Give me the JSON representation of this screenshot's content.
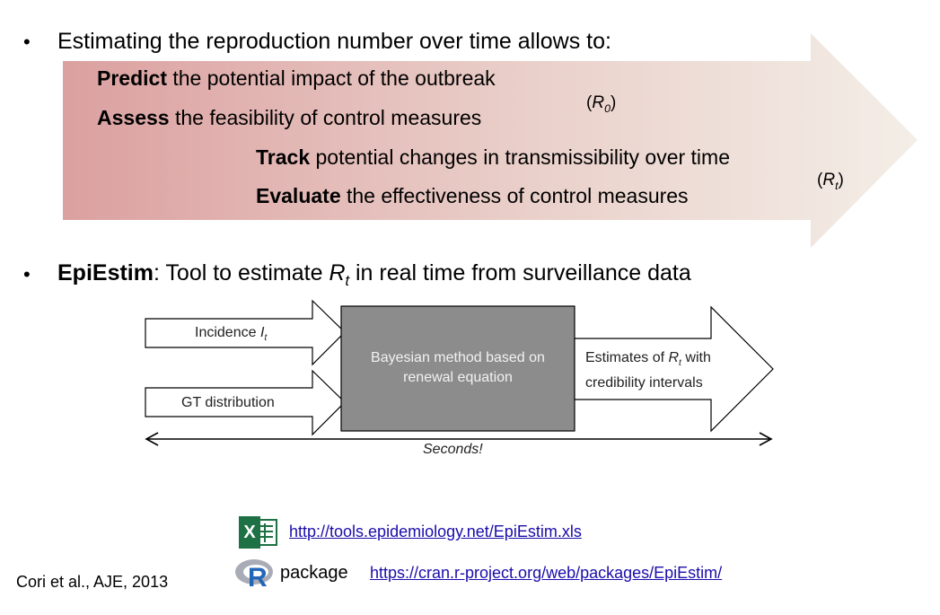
{
  "bullets": {
    "first": {
      "marker": "•",
      "text": "Estimating the reproduction number over time allows to:"
    },
    "second": {
      "marker": "•",
      "bold": "EpiEstim",
      "text_before_var": ": Tool to estimate ",
      "var_main": "R",
      "var_sub": "t",
      "text_after_var": " in real time from surveillance data"
    }
  },
  "arrow_items": [
    {
      "bold": "Predict",
      "rest": " the potential impact of the outbreak"
    },
    {
      "bold": "Assess",
      "rest": " the feasibility of control measures"
    },
    {
      "bold": "Track",
      "rest": " potential changes in transmissibility over time"
    },
    {
      "bold": "Evaluate",
      "rest": " the effectiveness of control measures"
    }
  ],
  "r0_label": {
    "open": "(",
    "main": "R",
    "sub": "0",
    "close": ")"
  },
  "rt_label": {
    "open": "(",
    "main": "R",
    "sub": "t",
    "close": ")"
  },
  "diagram": {
    "input1": {
      "text": "Incidence ",
      "var_main": "I",
      "var_sub": "t"
    },
    "input2": {
      "text": "GT distribution"
    },
    "method_line1": "Bayesian method based on",
    "method_line2": "renewal equation",
    "output_line1_before": "Estimates of ",
    "output_var_main": "R",
    "output_var_sub": "t",
    "output_line1_after": " with",
    "output_line2": "credibility intervals",
    "timeline_label": "Seconds!"
  },
  "links": {
    "excel_icon_letter": "X",
    "excel_url": "http://tools.epidemiology.net/EpiEstim.xls",
    "r_icon_letter": "R",
    "r_package_label": "package",
    "r_url": "https://cran.r-project.org/web/packages/EpiEstim/"
  },
  "citation": "Cori et al., AJE, 2013",
  "colors": {
    "arrow_start": "#dba0a0",
    "arrow_end": "#f2ede6",
    "method_box": "#8c8c8c",
    "link": "#1a0dab",
    "excel_green": "#1e7145"
  }
}
